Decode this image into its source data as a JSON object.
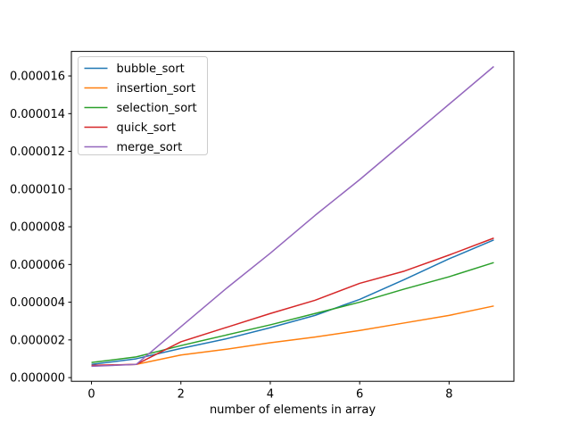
{
  "figure": {
    "background": "#ffffff",
    "spine_color": "#000000"
  },
  "chart_data": {
    "type": "line",
    "title": "",
    "xlabel": "number of elements in array",
    "ylabel": "",
    "grid": false,
    "legend_position": "upper-left",
    "xlim": [
      -0.45,
      9.45
    ],
    "ylim": [
      -1.95e-07,
      1.73e-05
    ],
    "xticks": [
      0,
      2,
      4,
      6,
      8
    ],
    "xtick_labels": [
      "0",
      "2",
      "4",
      "6",
      "8"
    ],
    "yticks": [
      0,
      2e-06,
      4e-06,
      6e-06,
      8e-06,
      1e-05,
      1.2e-05,
      1.4e-05,
      1.6e-05
    ],
    "ytick_labels": [
      "0.000000",
      "0.000002",
      "0.000004",
      "0.000006",
      "0.000008",
      "0.000010",
      "0.000012",
      "0.000014",
      "0.000016"
    ],
    "x": [
      0,
      1,
      2,
      3,
      4,
      5,
      6,
      7,
      8,
      9
    ],
    "series": [
      {
        "name": "bubble_sort",
        "color": "#1f77b4",
        "values": [
          7e-07,
          1e-06,
          1.55e-06,
          2.05e-06,
          2.65e-06,
          3.3e-06,
          4.15e-06,
          5.2e-06,
          6.3e-06,
          7.3e-06
        ]
      },
      {
        "name": "insertion_sort",
        "color": "#ff7f0e",
        "values": [
          6.2e-07,
          7e-07,
          1.2e-06,
          1.5e-06,
          1.85e-06,
          2.15e-06,
          2.5e-06,
          2.9e-06,
          3.3e-06,
          3.8e-06
        ]
      },
      {
        "name": "selection_sort",
        "color": "#2ca02c",
        "values": [
          8e-07,
          1.1e-06,
          1.7e-06,
          2.25e-06,
          2.8e-06,
          3.4e-06,
          4e-06,
          4.7e-06,
          5.35e-06,
          6.1e-06
        ]
      },
      {
        "name": "quick_sort",
        "color": "#d62728",
        "values": [
          6.5e-07,
          7e-07,
          1.9e-06,
          2.65e-06,
          3.4e-06,
          4.1e-06,
          5e-06,
          5.65e-06,
          6.5e-06,
          7.4e-06
        ]
      },
      {
        "name": "merge_sort",
        "color": "#9467bd",
        "values": [
          6e-07,
          7e-07,
          2.7e-06,
          4.7e-06,
          6.6e-06,
          8.6e-06,
          1.05e-05,
          1.25e-05,
          1.45e-05,
          1.65e-05
        ]
      }
    ]
  }
}
